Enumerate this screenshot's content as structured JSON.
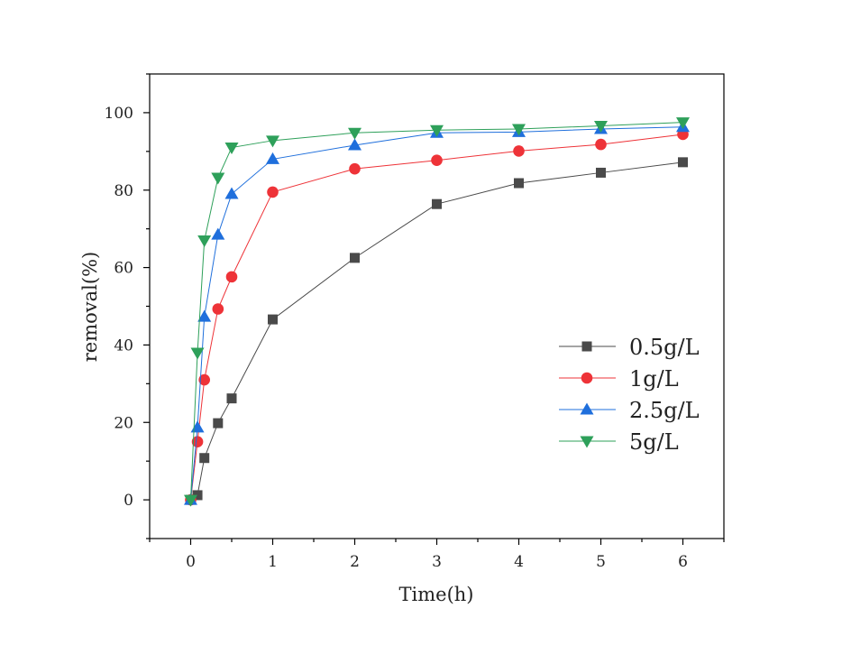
{
  "chart_data": {
    "type": "line",
    "title": "",
    "xlabel": "Time(h)",
    "ylabel": "removal(%)",
    "xlim": [
      -0.5,
      6.5
    ],
    "ylim": [
      -10,
      110
    ],
    "xticks": [
      0,
      1,
      2,
      3,
      4,
      5,
      6
    ],
    "yticks": [
      0,
      20,
      40,
      60,
      80,
      100
    ],
    "grid": false,
    "legend_position": "center-right",
    "x": [
      0,
      0.083,
      0.167,
      0.333,
      0.5,
      1,
      2,
      3,
      4,
      5,
      6
    ],
    "series": [
      {
        "name": "0.5g/L",
        "color": "#4a4a4a",
        "marker": "square",
        "values": [
          0,
          1.2,
          10.8,
          19.8,
          26.2,
          46.6,
          62.5,
          76.4,
          81.8,
          84.5,
          87.2
        ]
      },
      {
        "name": "1g/L",
        "color": "#ee3338",
        "marker": "circle",
        "values": [
          0,
          15.0,
          31.0,
          49.3,
          57.6,
          79.5,
          85.5,
          87.7,
          90.1,
          91.8,
          94.4
        ]
      },
      {
        "name": "2.5g/L",
        "color": "#1f6fdc",
        "marker": "triangle-up",
        "values": [
          0,
          18.7,
          47.3,
          68.5,
          79.0,
          88.0,
          91.6,
          94.8,
          95.0,
          95.8,
          96.3
        ]
      },
      {
        "name": "5g/L",
        "color": "#2ea05a",
        "marker": "triangle-down",
        "values": [
          0,
          38.0,
          67.0,
          83.2,
          91.0,
          92.8,
          94.8,
          95.5,
          95.8,
          96.6,
          97.5
        ]
      }
    ]
  }
}
